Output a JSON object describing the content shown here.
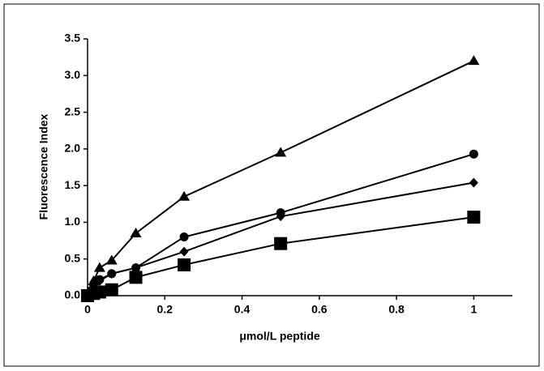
{
  "chart_data": {
    "type": "line",
    "x_label": "μmol/L peptide",
    "y_label": "Fluorescence Index",
    "x": [
      0,
      0.015625,
      0.03125,
      0.0625,
      0.125,
      0.25,
      0.5,
      1
    ],
    "series": [
      {
        "color": "#000000",
        "marker": "triangle",
        "values": [
          0,
          0.2,
          0.38,
          0.48,
          0.85,
          1.35,
          1.95,
          3.2
        ]
      },
      {
        "color": "#000000",
        "marker": "circle",
        "values": [
          0,
          0.15,
          0.22,
          0.3,
          0.38,
          0.8,
          1.13,
          1.93
        ]
      },
      {
        "color": "#000000",
        "marker": "diamond",
        "values": [
          0,
          0.12,
          0.2,
          0.3,
          0.38,
          0.6,
          1.08,
          1.54
        ]
      },
      {
        "color": "#000000",
        "marker": "square",
        "values": [
          0,
          0.03,
          0.05,
          0.08,
          0.25,
          0.42,
          0.71,
          1.07
        ]
      }
    ],
    "xlim": [
      0,
      1.1
    ],
    "xticks": [
      0,
      0.2,
      0.4,
      0.6,
      0.8,
      1
    ],
    "ylim": [
      0,
      3.5
    ],
    "yticks": [
      {
        "value": 0,
        "label": "0.0"
      },
      0.5,
      {
        "value": 1,
        "label": "1.0"
      },
      1.5,
      {
        "value": 2,
        "label": "2.0"
      },
      2.5,
      {
        "value": 3,
        "label": "3.0"
      },
      3.5
    ],
    "grid": false
  }
}
